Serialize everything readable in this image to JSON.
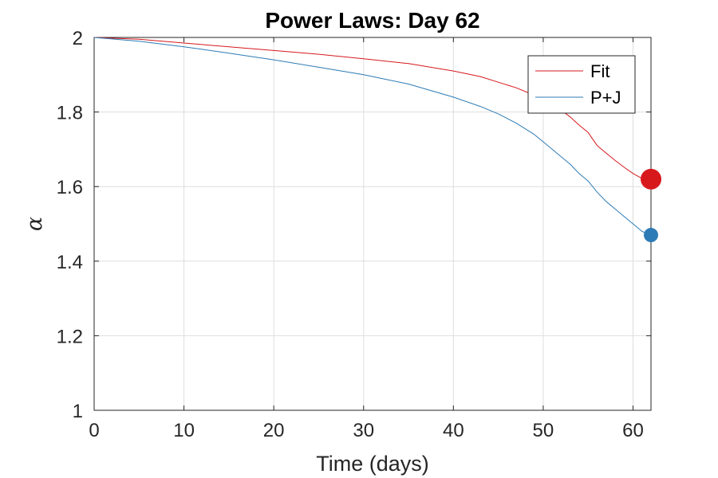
{
  "chart_data": {
    "type": "line",
    "title": "Power Laws: Day 62",
    "xlabel": "Time (days)",
    "ylabel": "α",
    "xlim": [
      0,
      62
    ],
    "ylim": [
      1,
      2
    ],
    "xticks": [
      0,
      10,
      20,
      30,
      40,
      50,
      60
    ],
    "yticks": [
      1,
      1.2,
      1.4,
      1.6,
      1.8,
      2
    ],
    "ytick_labels": [
      "1",
      "1.2",
      "1.4",
      "1.6",
      "1.8",
      "2"
    ],
    "grid": true,
    "legend_position": "top-right",
    "series": [
      {
        "name": "Fit",
        "color": "#d7191c",
        "x": [
          0,
          5,
          10,
          15,
          20,
          25,
          30,
          35,
          40,
          43,
          45,
          47,
          49,
          50,
          51,
          52,
          53,
          54,
          55,
          56,
          57,
          58,
          59,
          60,
          61,
          62
        ],
        "y": [
          2.0,
          1.995,
          1.985,
          1.975,
          1.965,
          1.955,
          1.943,
          1.93,
          1.91,
          1.895,
          1.88,
          1.865,
          1.845,
          1.835,
          1.82,
          1.805,
          1.787,
          1.765,
          1.745,
          1.71,
          1.69,
          1.67,
          1.652,
          1.635,
          1.622,
          1.62
        ],
        "end_marker": true,
        "end_marker_size": "large"
      },
      {
        "name": "P+J",
        "color": "#2c7bb6",
        "x": [
          0,
          5,
          10,
          15,
          20,
          25,
          30,
          35,
          40,
          43,
          45,
          47,
          49,
          50,
          51,
          52,
          53,
          54,
          55,
          56,
          57,
          58,
          59,
          60,
          61,
          62
        ],
        "y": [
          2.0,
          1.99,
          1.975,
          1.958,
          1.94,
          1.92,
          1.9,
          1.875,
          1.84,
          1.815,
          1.795,
          1.77,
          1.74,
          1.72,
          1.7,
          1.68,
          1.66,
          1.635,
          1.615,
          1.585,
          1.56,
          1.54,
          1.52,
          1.5,
          1.48,
          1.47
        ],
        "end_marker": true,
        "end_marker_size": "small"
      }
    ]
  }
}
